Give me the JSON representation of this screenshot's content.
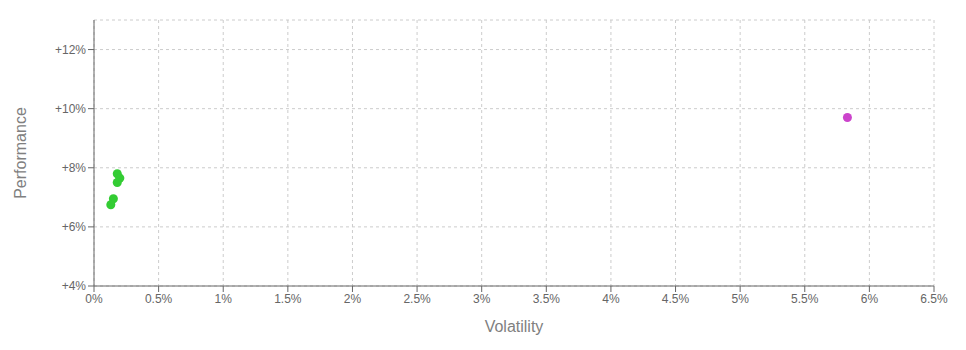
{
  "chart_data": {
    "type": "scatter",
    "xlabel": "Volatility",
    "ylabel": "Performance",
    "xlim": [
      0,
      0.065
    ],
    "ylim": [
      0.04,
      0.13
    ],
    "xticks": [
      {
        "value": 0.0,
        "label": "0%"
      },
      {
        "value": 0.005,
        "label": "0.5%"
      },
      {
        "value": 0.01,
        "label": "1%"
      },
      {
        "value": 0.015,
        "label": "1.5%"
      },
      {
        "value": 0.02,
        "label": "2%"
      },
      {
        "value": 0.025,
        "label": "2.5%"
      },
      {
        "value": 0.03,
        "label": "3%"
      },
      {
        "value": 0.035,
        "label": "3.5%"
      },
      {
        "value": 0.04,
        "label": "4%"
      },
      {
        "value": 0.045,
        "label": "4.5%"
      },
      {
        "value": 0.05,
        "label": "5%"
      },
      {
        "value": 0.055,
        "label": "5.5%"
      },
      {
        "value": 0.06,
        "label": "6%"
      },
      {
        "value": 0.065,
        "label": "6.5%"
      }
    ],
    "yticks": [
      {
        "value": 0.04,
        "label": "+4%"
      },
      {
        "value": 0.06,
        "label": "+6%"
      },
      {
        "value": 0.08,
        "label": "+8%"
      },
      {
        "value": 0.1,
        "label": "+10%"
      },
      {
        "value": 0.12,
        "label": "+12%"
      }
    ],
    "grid": true,
    "series": [
      {
        "color": "#33cc33",
        "x": [
          0.0018,
          0.002,
          0.0018,
          0.0015,
          0.0013
        ],
        "values": [
          0.078,
          0.0765,
          0.075,
          0.0695,
          0.0675
        ]
      },
      {
        "color": "#cc44cc",
        "x": [
          0.0583
        ],
        "values": [
          0.097
        ]
      }
    ]
  }
}
